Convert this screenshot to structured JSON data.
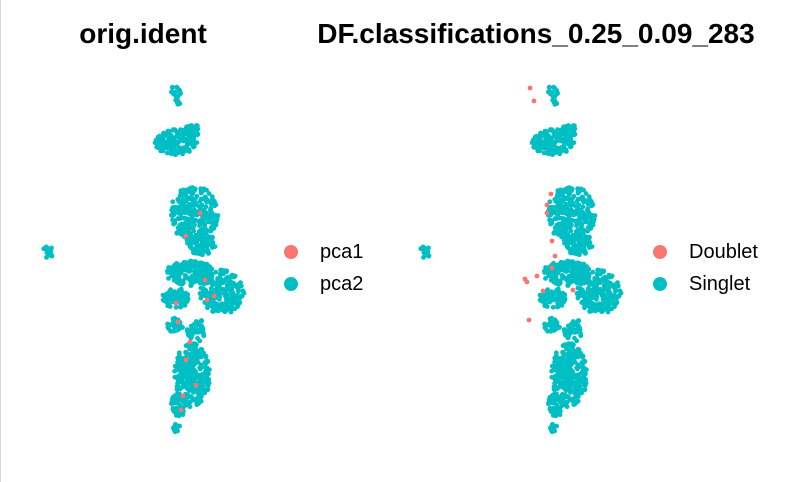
{
  "chart_data": [
    {
      "type": "scatter",
      "title": "orig.ident",
      "xlabel": "",
      "ylabel": "",
      "grid": false,
      "legend_position": "right",
      "series": [
        {
          "name": "pca1",
          "color": "#F8766D"
        },
        {
          "name": "pca2",
          "color": "#00BFC4"
        }
      ]
    },
    {
      "type": "scatter",
      "title": "DF.classifications_0.25_0.09_283",
      "xlabel": "",
      "ylabel": "",
      "grid": false,
      "legend_position": "right",
      "series": [
        {
          "name": "Doublet",
          "color": "#F8766D"
        },
        {
          "name": "Singlet",
          "color": "#00BFC4"
        }
      ]
    }
  ]
}
